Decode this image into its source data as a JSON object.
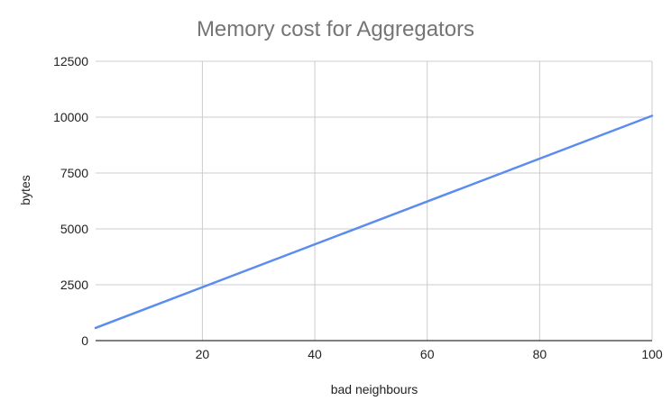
{
  "chart_data": {
    "type": "line",
    "title": "Memory cost for Aggregators",
    "xlabel": "bad neighbours",
    "ylabel": "bytes",
    "xlim": [
      1,
      100
    ],
    "ylim": [
      0,
      12500
    ],
    "x_ticks": [
      20,
      40,
      60,
      80,
      100
    ],
    "y_ticks": [
      0,
      2500,
      5000,
      7500,
      10000,
      12500
    ],
    "x_tick_labels": [
      "20",
      "40",
      "60",
      "80",
      "100"
    ],
    "y_tick_labels": [
      "0",
      "2500",
      "5000",
      "7500",
      "10000",
      "12500"
    ],
    "grid": true,
    "legend": "none",
    "colors": {
      "series": "#5b8def",
      "grid": "#cccccc",
      "axis": "#333333"
    },
    "series": [
      {
        "x": [
          1,
          100
        ],
        "values": [
          570,
          10060
        ]
      }
    ]
  }
}
